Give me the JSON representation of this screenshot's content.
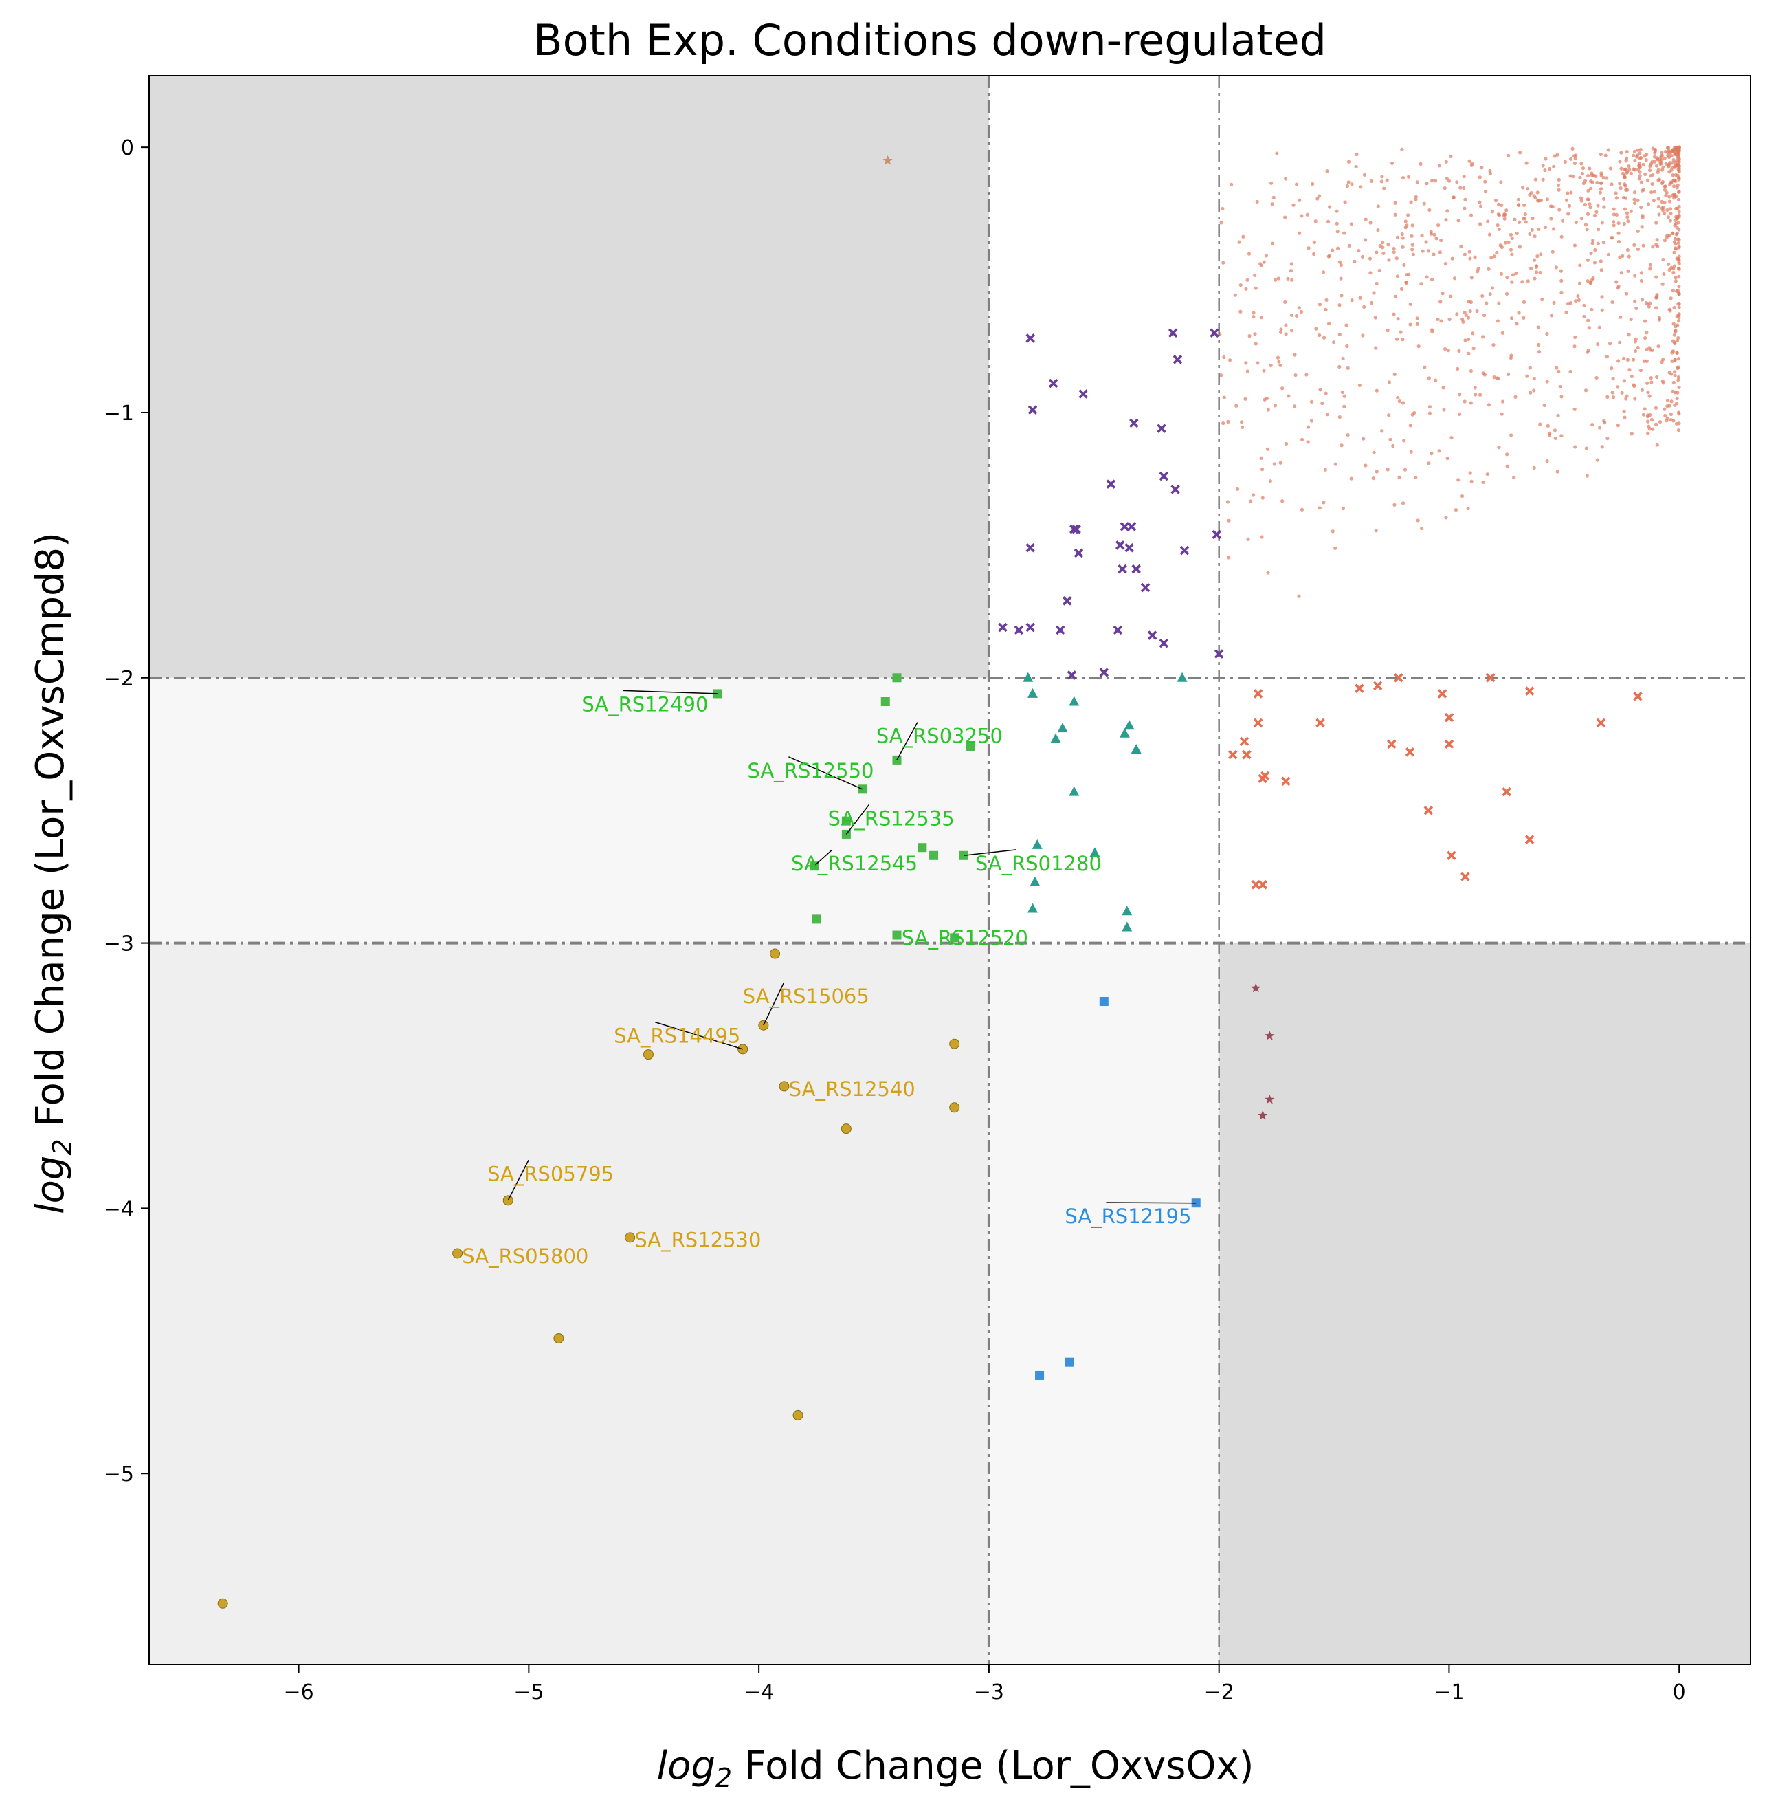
{
  "chart_data": {
    "type": "scatter",
    "title": "Both Exp. Conditions down-regulated",
    "xlabel_prefix": "log",
    "xlabel_sub": "2",
    "xlabel_rest": " Fold Change (Lor_OxvsOx)",
    "ylabel_prefix": "log",
    "ylabel_sub": "2",
    "ylabel_rest": " Fold Change (Lor_OxvsCmpd8)",
    "xlim": [
      -6.65,
      0.31
    ],
    "ylim": [
      -5.72,
      0.27
    ],
    "xticks": [
      -6,
      -5,
      -4,
      -3,
      -2,
      -1,
      0
    ],
    "yticks": [
      -5,
      -4,
      -3,
      -2,
      -1,
      0
    ],
    "tick_labels": {
      "-6": "−6",
      "-5": "−5",
      "-4": "−4",
      "-3": "−3",
      "-2": "−2",
      "-1": "−1",
      "0": "0"
    },
    "thresholds": {
      "x": [
        -3,
        -2
      ],
      "y": [
        -3,
        -2
      ]
    },
    "grid": false,
    "region_colors": {
      "dark": "#dcdcdc",
      "medium": "#efefef",
      "light": "#f7f7f7"
    },
    "background_cloud": {
      "color": "#e07a5f",
      "x_range": [
        -2,
        0
      ],
      "y_range": [
        -2,
        0
      ],
      "count": 1150
    },
    "series": [
      {
        "marker": "x",
        "color": "#6a3d9a",
        "points": [
          [
            -2.82,
            -0.72
          ],
          [
            -2.2,
            -0.7
          ],
          [
            -2.02,
            -0.7
          ],
          [
            -2.81,
            -0.99
          ],
          [
            -2.18,
            -0.8
          ],
          [
            -2.72,
            -0.89
          ],
          [
            -2.59,
            -0.93
          ],
          [
            -2.37,
            -1.04
          ],
          [
            -2.25,
            -1.06
          ],
          [
            -2.47,
            -1.27
          ],
          [
            -2.24,
            -1.24
          ],
          [
            -2.19,
            -1.29
          ],
          [
            -2.63,
            -1.44
          ],
          [
            -2.41,
            -1.43
          ],
          [
            -2.38,
            -1.43
          ],
          [
            -2.62,
            -1.44
          ],
          [
            -2.01,
            -1.46
          ],
          [
            -2.43,
            -1.5
          ],
          [
            -2.39,
            -1.51
          ],
          [
            -2.82,
            -1.51
          ],
          [
            -2.61,
            -1.53
          ],
          [
            -2.15,
            -1.52
          ],
          [
            -2.42,
            -1.59
          ],
          [
            -2.36,
            -1.59
          ],
          [
            -2.32,
            -1.66
          ],
          [
            -2.66,
            -1.71
          ],
          [
            -2.94,
            -1.81
          ],
          [
            -2.82,
            -1.81
          ],
          [
            -2.69,
            -1.82
          ],
          [
            -2.44,
            -1.82
          ],
          [
            -2.29,
            -1.84
          ],
          [
            -2.24,
            -1.87
          ],
          [
            -2.0,
            -1.91
          ],
          [
            -2.5,
            -1.98
          ],
          [
            -2.64,
            -1.99
          ],
          [
            -2.87,
            -1.82
          ]
        ]
      },
      {
        "marker": "triangle",
        "color": "#2a9d8f",
        "points": [
          [
            -2.83,
            -2.0
          ],
          [
            -2.81,
            -2.06
          ],
          [
            -2.63,
            -2.09
          ],
          [
            -2.16,
            -2.0
          ],
          [
            -2.39,
            -2.18
          ],
          [
            -2.68,
            -2.19
          ],
          [
            -2.41,
            -2.21
          ],
          [
            -2.71,
            -2.23
          ],
          [
            -2.36,
            -2.27
          ],
          [
            -2.63,
            -2.43
          ],
          [
            -2.79,
            -2.63
          ],
          [
            -2.54,
            -2.66
          ],
          [
            -2.8,
            -2.77
          ],
          [
            -2.81,
            -2.87
          ],
          [
            -2.4,
            -2.88
          ],
          [
            -2.4,
            -2.94
          ]
        ]
      },
      {
        "marker": "x",
        "color": "#e76f51",
        "points": [
          [
            -1.31,
            -2.03
          ],
          [
            -1.39,
            -2.04
          ],
          [
            -1.22,
            -2.0
          ],
          [
            -0.82,
            -2.0
          ],
          [
            -1.83,
            -2.06
          ],
          [
            -1.03,
            -2.06
          ],
          [
            -0.65,
            -2.05
          ],
          [
            -0.18,
            -2.07
          ],
          [
            -1.56,
            -2.17
          ],
          [
            -1.83,
            -2.17
          ],
          [
            -1.0,
            -2.15
          ],
          [
            -0.34,
            -2.17
          ],
          [
            -1.89,
            -2.24
          ],
          [
            -1.88,
            -2.29
          ],
          [
            -1.94,
            -2.29
          ],
          [
            -1.25,
            -2.25
          ],
          [
            -1.17,
            -2.28
          ],
          [
            -1.0,
            -2.25
          ],
          [
            -1.81,
            -2.38
          ],
          [
            -1.8,
            -2.37
          ],
          [
            -1.71,
            -2.39
          ],
          [
            -1.09,
            -2.5
          ],
          [
            -0.75,
            -2.43
          ],
          [
            -0.65,
            -2.61
          ],
          [
            -0.99,
            -2.67
          ],
          [
            -0.93,
            -2.75
          ],
          [
            -1.84,
            -2.78
          ],
          [
            -1.81,
            -2.78
          ]
        ]
      },
      {
        "marker": "star",
        "color": "#9c4a5a",
        "points": [
          [
            -1.84,
            -3.17
          ],
          [
            -1.78,
            -3.35
          ],
          [
            -1.78,
            -3.59
          ],
          [
            -1.81,
            -3.65
          ]
        ]
      },
      {
        "marker": "star",
        "color": "#c9906a",
        "points": [
          [
            -3.44,
            -0.05
          ]
        ]
      },
      {
        "marker": "square",
        "color": "#3b8fdb",
        "points": [
          [
            -2.5,
            -3.22
          ],
          [
            -2.1,
            -3.98
          ],
          [
            -2.65,
            -4.58
          ],
          [
            -2.78,
            -4.63
          ]
        ]
      },
      {
        "marker": "square",
        "color": "#4ab84a",
        "points": [
          [
            -3.4,
            -2.0
          ],
          [
            -4.18,
            -2.06
          ],
          [
            -3.45,
            -2.09
          ],
          [
            -3.08,
            -2.26
          ],
          [
            -3.4,
            -2.31
          ],
          [
            -3.55,
            -2.42
          ],
          [
            -3.62,
            -2.54
          ],
          [
            -3.62,
            -2.59
          ],
          [
            -3.29,
            -2.64
          ],
          [
            -3.24,
            -2.67
          ],
          [
            -3.11,
            -2.67
          ],
          [
            -3.76,
            -2.71
          ],
          [
            -3.75,
            -2.91
          ],
          [
            -3.4,
            -2.97
          ],
          [
            -3.15,
            -2.98
          ]
        ]
      },
      {
        "marker": "circle",
        "color": "#c9a227",
        "points": [
          [
            -3.93,
            -3.04
          ],
          [
            -3.98,
            -3.31
          ],
          [
            -4.07,
            -3.4
          ],
          [
            -4.48,
            -3.42
          ],
          [
            -3.15,
            -3.38
          ],
          [
            -3.89,
            -3.54
          ],
          [
            -3.15,
            -3.62
          ],
          [
            -3.62,
            -3.7
          ],
          [
            -5.09,
            -3.97
          ],
          [
            -4.56,
            -4.11
          ],
          [
            -5.31,
            -4.17
          ],
          [
            -4.87,
            -4.49
          ],
          [
            -3.83,
            -4.78
          ],
          [
            -6.33,
            -5.49
          ]
        ]
      }
    ],
    "annotations": [
      {
        "text": "SA_RS12490",
        "color": "#2bc42b",
        "x": -4.18,
        "y": -2.06,
        "lx": -4.77,
        "ly": -2.1,
        "anchor": "start",
        "line": true
      },
      {
        "text": "SA_RS03250",
        "color": "#2bc42b",
        "x": -3.4,
        "y": -2.31,
        "lx": -3.49,
        "ly": -2.22,
        "anchor": "start",
        "line": true
      },
      {
        "text": "SA_RS12550",
        "color": "#2bc42b",
        "x": -3.55,
        "y": -2.42,
        "lx": -4.05,
        "ly": -2.35,
        "anchor": "start",
        "line": true
      },
      {
        "text": "SA_RS12535",
        "color": "#2bc42b",
        "x": -3.62,
        "y": -2.59,
        "lx": -3.7,
        "ly": -2.53,
        "anchor": "start",
        "line": true
      },
      {
        "text": "SA_RS01280",
        "color": "#2bc42b",
        "x": -3.11,
        "y": -2.67,
        "lx": -3.06,
        "ly": -2.7,
        "anchor": "start",
        "line": true
      },
      {
        "text": "SA_RS12545",
        "color": "#2bc42b",
        "x": -3.76,
        "y": -2.71,
        "lx": -3.86,
        "ly": -2.7,
        "anchor": "start",
        "line": true
      },
      {
        "text": "SA_RS12520",
        "color": "#2bc42b",
        "x": -3.15,
        "y": -2.98,
        "lx": -3.38,
        "ly": -2.98,
        "anchor": "start",
        "line": false
      },
      {
        "text": "SA_RS15065",
        "color": "#d4a017",
        "x": -3.98,
        "y": -3.31,
        "lx": -4.07,
        "ly": -3.2,
        "anchor": "start",
        "line": true
      },
      {
        "text": "SA_RS14495",
        "color": "#d4a017",
        "x": -4.07,
        "y": -3.4,
        "lx": -4.63,
        "ly": -3.35,
        "anchor": "start",
        "line": true
      },
      {
        "text": "SA_RS12540",
        "color": "#d4a017",
        "x": -3.89,
        "y": -3.54,
        "lx": -3.87,
        "ly": -3.55,
        "anchor": "start",
        "line": false
      },
      {
        "text": "SA_RS05795",
        "color": "#d4a017",
        "x": -5.09,
        "y": -3.97,
        "lx": -5.18,
        "ly": -3.87,
        "anchor": "start",
        "line": true
      },
      {
        "text": "SA_RS12530",
        "color": "#d4a017",
        "x": -4.56,
        "y": -4.11,
        "lx": -4.54,
        "ly": -4.12,
        "anchor": "start",
        "line": false
      },
      {
        "text": "SA_RS05800",
        "color": "#d4a017",
        "x": -5.31,
        "y": -4.17,
        "lx": -5.29,
        "ly": -4.18,
        "anchor": "start",
        "line": false
      },
      {
        "text": "SA_RS12195",
        "color": "#2b8de0",
        "x": -2.1,
        "y": -3.98,
        "lx": -2.67,
        "ly": -4.03,
        "anchor": "start",
        "line": true
      }
    ]
  }
}
